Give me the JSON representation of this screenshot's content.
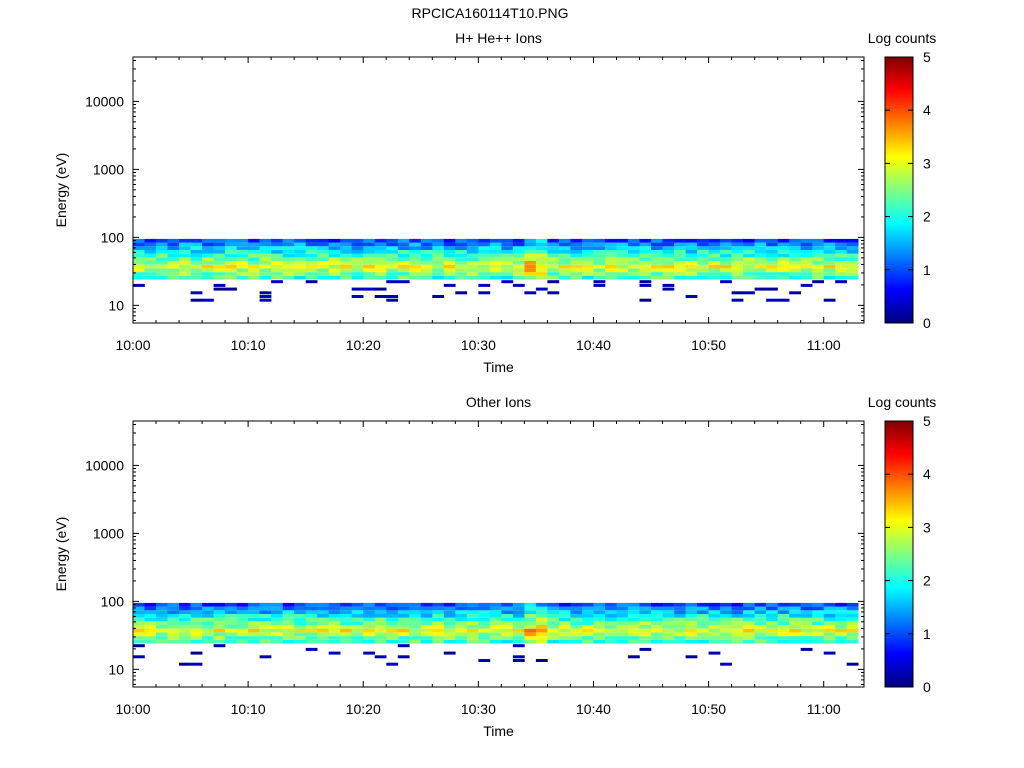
{
  "figure": {
    "title": "RPCICA160114T10.PNG"
  },
  "chart_data": [
    {
      "type": "heatmap",
      "title": "H+ He++ Ions",
      "xlabel": "Time",
      "ylabel": "Energy (eV)",
      "x_range_minutes": [
        0,
        63.5
      ],
      "x_ticks": [
        {
          "minute": 0,
          "label": "10:00"
        },
        {
          "minute": 10,
          "label": "10:10"
        },
        {
          "minute": 20,
          "label": "10:20"
        },
        {
          "minute": 30,
          "label": "10:30"
        },
        {
          "minute": 40,
          "label": "10:40"
        },
        {
          "minute": 50,
          "label": "10:50"
        },
        {
          "minute": 60,
          "label": "11:00"
        }
      ],
      "y_scale": "log",
      "y_range": [
        5.5,
        45000
      ],
      "y_ticks": [
        {
          "value": 10,
          "label": "10"
        },
        {
          "value": 100,
          "label": "100"
        },
        {
          "value": 1000,
          "label": "1000"
        },
        {
          "value": 10000,
          "label": "10000"
        }
      ],
      "colorbar": {
        "label": "Log counts",
        "range": [
          0,
          5
        ],
        "ticks": [
          "0",
          "1",
          "2",
          "3",
          "4",
          "5"
        ]
      },
      "data_extent_energy_eV": [
        6,
        95
      ],
      "data_end_minute": 62.5,
      "peak_energy_eV": 37,
      "peak_log_counts": 3.0,
      "colorscale": [
        "#00007f",
        "#0000ff",
        "#007fff",
        "#00ffff",
        "#7fff7f",
        "#ffff00",
        "#ff7f00",
        "#ff0000",
        "#7f0000"
      ]
    },
    {
      "type": "heatmap",
      "title": "Other Ions",
      "xlabel": "Time",
      "ylabel": "Energy (eV)",
      "x_range_minutes": [
        0,
        63.5
      ],
      "x_ticks": [
        {
          "minute": 0,
          "label": "10:00"
        },
        {
          "minute": 10,
          "label": "10:10"
        },
        {
          "minute": 20,
          "label": "10:20"
        },
        {
          "minute": 30,
          "label": "10:30"
        },
        {
          "minute": 40,
          "label": "10:40"
        },
        {
          "minute": 50,
          "label": "10:50"
        },
        {
          "minute": 60,
          "label": "11:00"
        }
      ],
      "y_scale": "log",
      "y_range": [
        5.5,
        45000
      ],
      "y_ticks": [
        {
          "value": 10,
          "label": "10"
        },
        {
          "value": 100,
          "label": "100"
        },
        {
          "value": 1000,
          "label": "1000"
        },
        {
          "value": 10000,
          "label": "10000"
        }
      ],
      "colorbar": {
        "label": "Log counts",
        "range": [
          0,
          5
        ],
        "ticks": [
          "0",
          "1",
          "2",
          "3",
          "4",
          "5"
        ]
      },
      "data_extent_energy_eV": [
        7,
        95
      ],
      "data_end_minute": 62.5,
      "peak_energy_eV": 37,
      "peak_log_counts": 3.0,
      "colorscale": [
        "#00007f",
        "#0000ff",
        "#007fff",
        "#00ffff",
        "#7fff7f",
        "#ffff00",
        "#ff7f00",
        "#ff0000",
        "#7f0000"
      ]
    }
  ]
}
